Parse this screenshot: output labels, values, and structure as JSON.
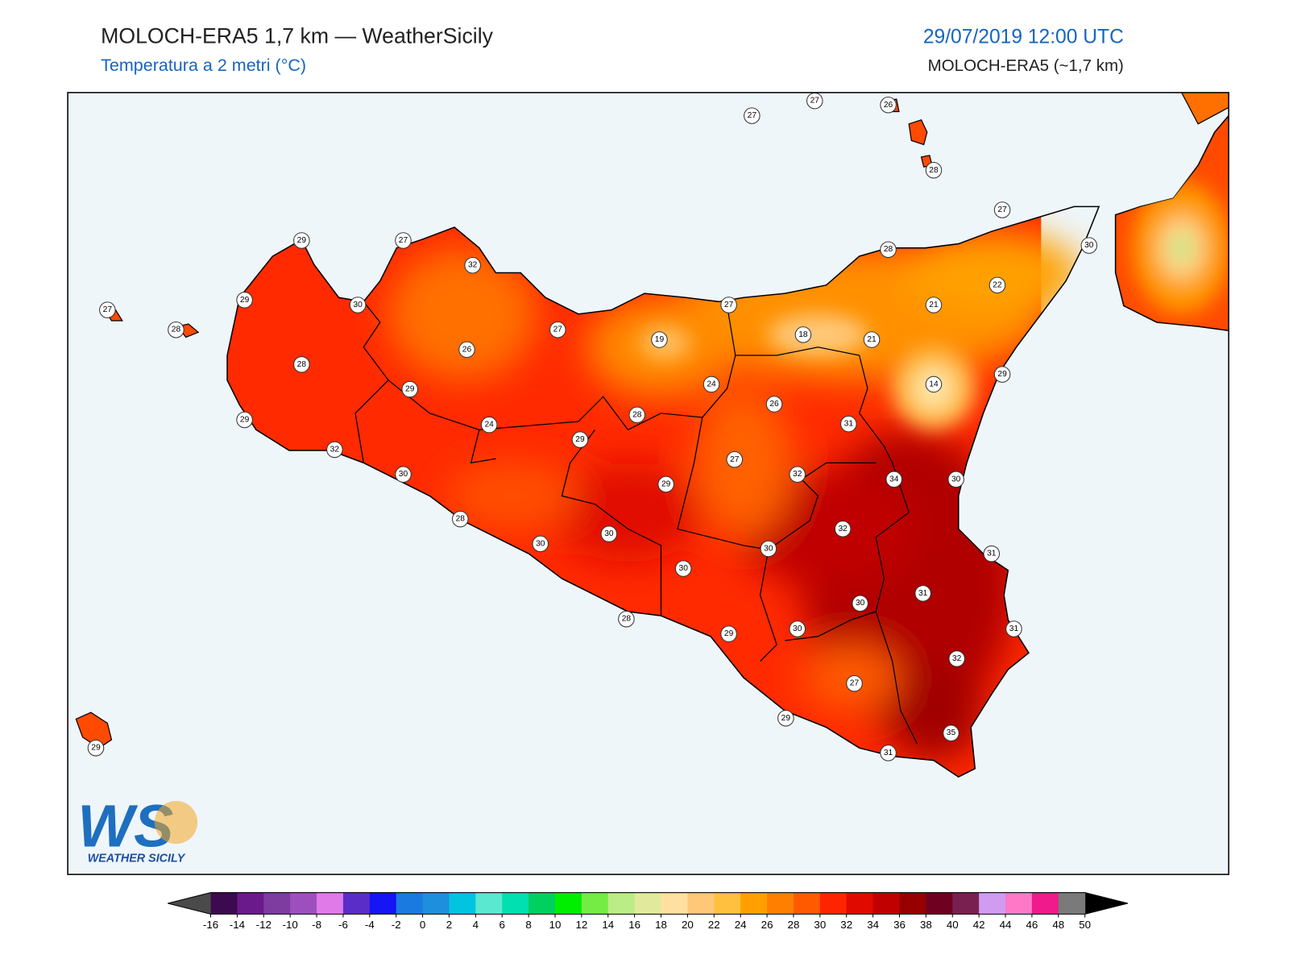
{
  "header": {
    "title": "MOLOCH-ERA5 1,7 km — WeatherSicily",
    "subtitle": "Temperatura a 2 metri (°C)",
    "datetime": "29/07/2019 12:00 UTC",
    "model": "MOLOCH-ERA5 (~1,7 km)"
  },
  "station_labels": [
    27,
    27,
    26,
    28,
    27,
    30,
    28,
    22,
    21,
    21,
    18,
    14,
    29,
    27,
    19,
    24,
    26,
    31,
    27,
    32,
    34,
    30,
    32,
    31,
    30,
    31,
    30,
    31,
    30,
    29,
    32,
    27,
    29,
    35,
    31,
    29,
    27,
    32,
    29,
    30,
    27,
    28,
    27,
    26,
    28,
    29,
    29,
    24,
    28,
    29,
    32,
    30,
    29,
    28,
    30,
    30,
    30,
    28,
    29
  ],
  "colorbar": {
    "ticks": [
      -16,
      -14,
      -12,
      -10,
      -8,
      -6,
      -4,
      -2,
      0,
      2,
      4,
      6,
      8,
      10,
      12,
      14,
      16,
      18,
      20,
      22,
      24,
      26,
      28,
      30,
      32,
      34,
      36,
      38,
      40,
      42,
      44,
      46,
      48,
      50
    ],
    "colors": [
      "#3c0a4e",
      "#6a1a8a",
      "#7e3ba0",
      "#9d50bd",
      "#e07ae8",
      "#5a2dc8",
      "#1515f5",
      "#1a7ae0",
      "#1e8fdc",
      "#00c4e0",
      "#5ae8d0",
      "#00e0b0",
      "#00d060",
      "#00ee00",
      "#74ec44",
      "#bcec86",
      "#e0ea9c",
      "#ffe0a0",
      "#ffc878",
      "#ffc040",
      "#ffa000",
      "#ff8000",
      "#ff5a00",
      "#ff2400",
      "#e00a00",
      "#c00000",
      "#960000",
      "#6e0020",
      "#7a2050",
      "#d09cf0",
      "#ff78c8",
      "#f01a8c",
      "#7a7a7a"
    ],
    "under_color": "#4a4a4a",
    "over_color": "#000000"
  },
  "logo": {
    "mark": "WS",
    "name": "WEATHER SICILY"
  }
}
